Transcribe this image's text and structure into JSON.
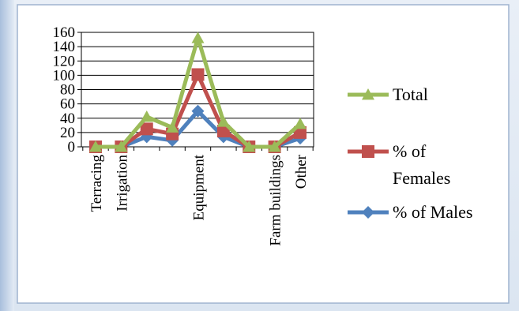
{
  "chart_data": {
    "type": "line",
    "title": "",
    "xlabel": "",
    "ylabel": "",
    "ylim": [
      0,
      160
    ],
    "yticks": [
      0,
      20,
      40,
      60,
      80,
      100,
      120,
      140,
      160
    ],
    "grid": "horizontal",
    "legend_position": "right",
    "categories": [
      "Terracing",
      "Irrigation",
      "",
      "",
      "Equipment",
      "",
      "",
      "Farm buildings",
      "Other"
    ],
    "series": [
      {
        "name": "Total",
        "marker": "triangle",
        "color": "#9bbb59",
        "values": [
          0,
          0,
          42,
          27,
          152,
          35,
          0,
          0,
          32
        ]
      },
      {
        "name": "% of Females",
        "marker": "square",
        "color": "#c0504d",
        "values": [
          0,
          0,
          25,
          18,
          101,
          22,
          0,
          0,
          20
        ]
      },
      {
        "name": "% of Males",
        "marker": "diamond",
        "color": "#4f81bd",
        "values": [
          0,
          0,
          14,
          9,
          50,
          14,
          0,
          0,
          12
        ]
      }
    ]
  }
}
